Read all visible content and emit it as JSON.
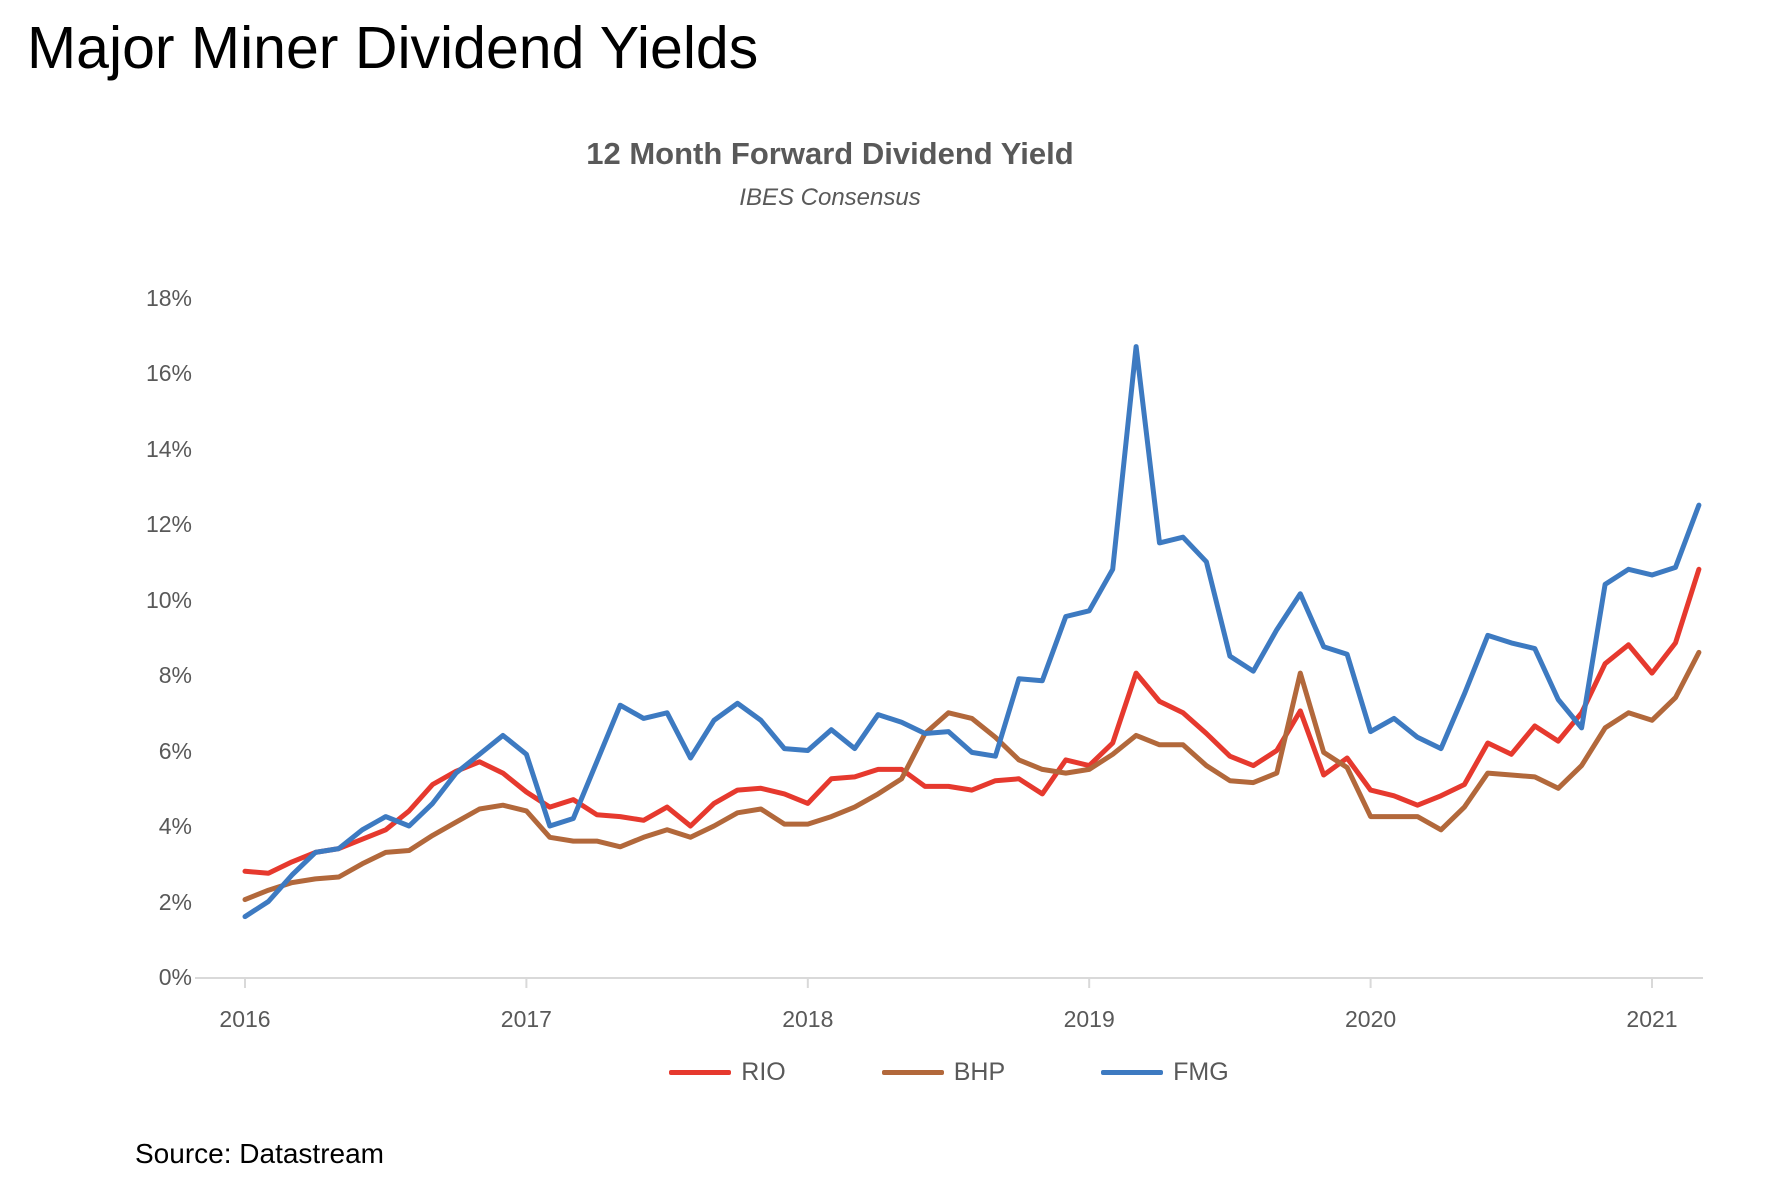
{
  "page": {
    "title": "Major Miner Dividend Yields",
    "source": "Source: Datastream"
  },
  "chart": {
    "title": "12 Month Forward Dividend Yield",
    "subtitle": "IBES Consensus"
  },
  "chart_data": {
    "type": "line",
    "title": "12 Month Forward Dividend Yield",
    "subtitle": "IBES Consensus",
    "x_unit": "month",
    "x_start": "2016-01",
    "x_end": "2021-03",
    "points_per_series": 63,
    "x_tick_labels": [
      "2016",
      "2017",
      "2018",
      "2019",
      "2020",
      "2021"
    ],
    "y_tick_labels": [
      "0%",
      "2%",
      "4%",
      "6%",
      "8%",
      "10%",
      "12%",
      "14%",
      "16%",
      "18%"
    ],
    "ylim": [
      0,
      18
    ],
    "grid": false,
    "legend_position": "bottom",
    "axis_color": "#d9d9d9",
    "label_color": "#595959",
    "series": [
      {
        "name": "RIO",
        "color": "#e6392e",
        "values": [
          2.8,
          2.75,
          3.05,
          3.3,
          3.4,
          3.65,
          3.9,
          4.4,
          5.1,
          5.45,
          5.7,
          5.4,
          4.9,
          4.5,
          4.7,
          4.3,
          4.25,
          4.15,
          4.5,
          4.0,
          4.6,
          4.95,
          5.0,
          4.85,
          4.6,
          5.25,
          5.3,
          5.5,
          5.5,
          5.05,
          5.05,
          4.95,
          5.2,
          5.25,
          4.85,
          5.75,
          5.6,
          6.2,
          8.05,
          7.3,
          7.0,
          6.45,
          5.85,
          5.6,
          6.0,
          7.05,
          5.35,
          5.8,
          4.95,
          4.8,
          4.55,
          4.8,
          5.1,
          6.2,
          5.9,
          6.65,
          6.25,
          7.0,
          8.3,
          8.8,
          8.05,
          8.85,
          10.8
        ]
      },
      {
        "name": "BHP",
        "color": "#b2683b",
        "values": [
          2.05,
          2.3,
          2.5,
          2.6,
          2.65,
          3.0,
          3.3,
          3.35,
          3.75,
          4.1,
          4.45,
          4.55,
          4.4,
          3.7,
          3.6,
          3.6,
          3.45,
          3.7,
          3.9,
          3.7,
          4.0,
          4.35,
          4.45,
          4.05,
          4.05,
          4.25,
          4.5,
          4.85,
          5.25,
          6.45,
          7.0,
          6.85,
          6.35,
          5.75,
          5.5,
          5.4,
          5.5,
          5.9,
          6.4,
          6.15,
          6.15,
          5.6,
          5.2,
          5.15,
          5.4,
          8.05,
          5.95,
          5.55,
          4.25,
          4.25,
          4.25,
          3.9,
          4.5,
          5.4,
          5.35,
          5.3,
          5.0,
          5.6,
          6.6,
          7.0,
          6.8,
          7.4,
          8.6
        ]
      },
      {
        "name": "FMG",
        "color": "#3d7ac1",
        "values": [
          1.6,
          2.0,
          2.7,
          3.3,
          3.4,
          3.9,
          4.25,
          4.0,
          4.6,
          5.4,
          5.9,
          6.4,
          5.9,
          4.0,
          4.2,
          5.7,
          7.2,
          6.85,
          7.0,
          5.8,
          6.8,
          7.25,
          6.8,
          6.05,
          6.0,
          6.55,
          6.05,
          6.95,
          6.75,
          6.45,
          6.5,
          5.95,
          5.85,
          7.9,
          7.85,
          9.55,
          9.7,
          10.8,
          16.7,
          11.5,
          11.65,
          11.0,
          8.5,
          8.1,
          9.2,
          10.15,
          8.75,
          8.55,
          6.5,
          6.85,
          6.35,
          6.05,
          7.5,
          9.05,
          8.85,
          8.7,
          7.35,
          6.6,
          10.4,
          10.8,
          10.65,
          10.85,
          12.5
        ]
      }
    ]
  }
}
